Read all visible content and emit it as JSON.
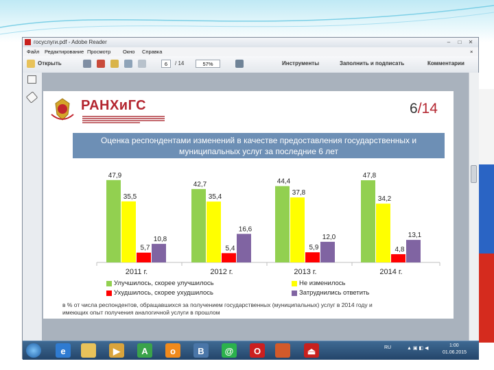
{
  "window": {
    "title": "госуслуги.pdf - Adobe Reader",
    "menu": [
      "Файл",
      "Редактирование",
      "Просмотр",
      "Окно",
      "Справка"
    ],
    "toolbar": {
      "open_label": "Открыть",
      "page_current": "6",
      "page_total": "/ 14",
      "zoom": "57%",
      "tools_label": "Инструменты",
      "fill_sign_label": "Заполнить и подписать",
      "comments_label": "Комментарии"
    }
  },
  "slide": {
    "logo": "РАНХиГС",
    "page_current": "6",
    "page_sep": "/",
    "page_total": "14",
    "banner_line1": "Оценка респондентами изменений в качестве предоставления государственных и",
    "banner_line2": "муниципальных услуг за последние 6 лет",
    "footnote_line1": "в % от числа респондентов, обращавшихся за получением государственных (муниципальных) услуг в 2014 году и",
    "footnote_line2": "имеющих опыт получения аналогичной услуги в прошлом"
  },
  "chart_data": {
    "type": "bar",
    "categories": [
      "2011 г.",
      "2012 г.",
      "2013 г.",
      "2014 г."
    ],
    "series": [
      {
        "name": "Улучшилось, скорее улучшилось",
        "color": "#92d050",
        "values": [
          47.9,
          42.7,
          44.4,
          47.8
        ],
        "labels": [
          "47,9",
          "42,7",
          "44,4",
          "47,8"
        ]
      },
      {
        "name": "Не изменилось",
        "color": "#ffff00",
        "values": [
          35.5,
          35.4,
          37.8,
          34.2
        ],
        "labels": [
          "35,5",
          "35,4",
          "37,8",
          "34,2"
        ]
      },
      {
        "name": "Ухудшилось, скорее ухудшилось",
        "color": "#ff0000",
        "values": [
          5.7,
          5.4,
          5.9,
          4.8
        ],
        "labels": [
          "5,7",
          "5,4",
          "5,9",
          "4,8"
        ]
      },
      {
        "name": "Затруднились ответить",
        "color": "#8064a2",
        "values": [
          10.8,
          16.6,
          12.0,
          13.1
        ],
        "labels": [
          "10,8",
          "16,6",
          "12,0",
          "13,1"
        ]
      }
    ],
    "ylim": [
      0,
      55
    ],
    "legend_position": "bottom"
  },
  "taskbar": {
    "lang": "RU",
    "time": "1:00",
    "date": "01.06.2015"
  }
}
